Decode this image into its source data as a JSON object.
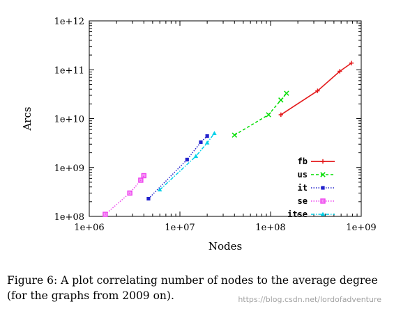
{
  "chart_data": {
    "type": "scatter",
    "title": "",
    "xlabel": "Nodes",
    "ylabel": "Arcs",
    "x_scale": "log",
    "y_scale": "log",
    "xlim": [
      1000000,
      1000000000
    ],
    "ylim": [
      100000000,
      1000000000000
    ],
    "x_ticks": [
      "1e+06",
      "1e+07",
      "1e+08",
      "1e+09"
    ],
    "y_ticks": [
      "1e+08",
      "1e+09",
      "1e+10",
      "1e+11",
      "1e+12"
    ],
    "legend_position": "bottom-right",
    "grid": false,
    "series": [
      {
        "name": "fb",
        "color": "#e41a1c",
        "line": "solid",
        "marker": "plus",
        "x": [
          130000000,
          330000000,
          580000000,
          780000000
        ],
        "y": [
          12000000000,
          37000000000,
          93000000000,
          137000000000
        ]
      },
      {
        "name": "us",
        "color": "#00dd00",
        "line": "dashed",
        "marker": "cross",
        "x": [
          40000000,
          95000000,
          130000000,
          150000000
        ],
        "y": [
          4600000000,
          12000000000,
          24000000000,
          33000000000
        ]
      },
      {
        "name": "it",
        "color": "#2222cc",
        "line": "dotted",
        "marker": "square-filled",
        "x": [
          4500000,
          12000000,
          17000000,
          20000000
        ],
        "y": [
          230000000,
          1450000000,
          3300000000,
          4400000000
        ]
      },
      {
        "name": "se",
        "color": "#ee44ee",
        "line": "dotted",
        "marker": "square-open",
        "x": [
          1500000,
          2800000,
          3700000,
          4000000
        ],
        "y": [
          110000000,
          300000000,
          550000000,
          680000000
        ]
      },
      {
        "name": "itse",
        "color": "#00d0e8",
        "line": "dashdot",
        "marker": "triangle",
        "x": [
          6000000,
          15000000,
          20000000,
          24000000
        ],
        "y": [
          350000000,
          1700000000,
          3200000000,
          5000000000
        ]
      }
    ]
  },
  "caption": {
    "text": "Figure 6:   A plot correlating number of nodes to the average degree (for the graphs from 2009 on)."
  },
  "watermark": {
    "text": "https://blog.csdn.net/lordofadventure"
  }
}
